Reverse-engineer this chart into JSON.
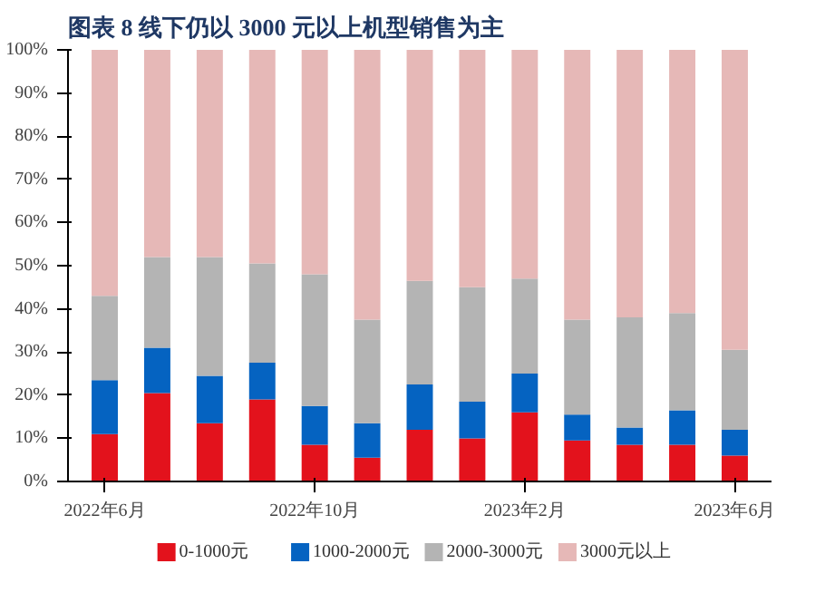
{
  "chart_data": {
    "type": "bar",
    "stacked": true,
    "title": "图表 8   线下仍以 3000 元以上机型销售为主",
    "categories": [
      "2022年6月",
      null,
      null,
      null,
      "2022年10月",
      null,
      null,
      null,
      "2023年2月",
      null,
      null,
      null,
      "2023年6月"
    ],
    "series": [
      {
        "name": "0-1000元",
        "color": "#e3121c",
        "values": [
          11,
          20.5,
          13.5,
          19,
          8.5,
          5.5,
          12,
          10,
          16,
          9.5,
          8.5,
          8.5,
          6
        ]
      },
      {
        "name": "1000-2000元",
        "color": "#0563c1",
        "values": [
          12.5,
          10.5,
          11,
          8.5,
          9,
          8,
          10.5,
          8.5,
          9,
          6,
          4,
          8,
          6
        ]
      },
      {
        "name": "2000-3000元",
        "color": "#b4b4b4",
        "values": [
          19.5,
          21,
          27.5,
          23,
          30.5,
          24,
          24,
          26.5,
          22,
          22,
          25.5,
          22.5,
          18.5
        ]
      },
      {
        "name": "3000元以上",
        "color": "#e6b8b7",
        "values": [
          57,
          48,
          48,
          49.5,
          52,
          62.5,
          53.5,
          55,
          53,
          62.5,
          62,
          61,
          69.5
        ]
      }
    ],
    "ylim": [
      0,
      100
    ],
    "yticks": [
      {
        "value": 0,
        "label": "0%"
      },
      {
        "value": 10,
        "label": "10%"
      },
      {
        "value": 20,
        "label": "20%"
      },
      {
        "value": 30,
        "label": "30%"
      },
      {
        "value": 40,
        "label": "40%"
      },
      {
        "value": 50,
        "label": "50%"
      },
      {
        "value": 60,
        "label": "60%"
      },
      {
        "value": 70,
        "label": "70%"
      },
      {
        "value": 80,
        "label": "80%"
      },
      {
        "value": 90,
        "label": "90%"
      },
      {
        "value": 100,
        "label": "100%"
      }
    ],
    "grid": false,
    "legend": "bottom"
  }
}
